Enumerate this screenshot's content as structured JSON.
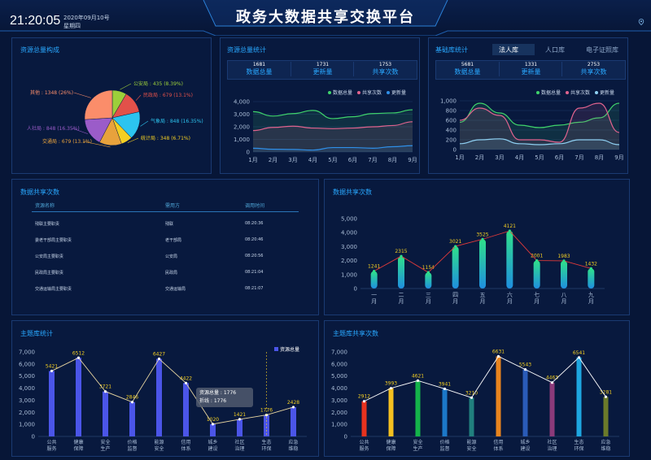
{
  "header": {
    "title": "政务大数据共享交换平台",
    "time": "21:20:05",
    "date": "2020年09月10号",
    "weekday": "星期四",
    "location_icon": "location-pin-icon"
  },
  "colors": {
    "background": "#071637",
    "accent": "#29a8ff",
    "panel_border": "#1a3a72"
  },
  "resource_composition": {
    "title": "资源总量构成",
    "chart_data": {
      "type": "pie",
      "slices": [
        {
          "name": "公安局",
          "value": 435,
          "label": "公安局 : 435 (8.39%)",
          "color": "#9ccf3a"
        },
        {
          "name": "民政局",
          "value": 679,
          "label": "民政局 : 679 (13.1%)",
          "color": "#e2514a"
        },
        {
          "name": "气象局",
          "value": 848,
          "label": "气象局 : 848 (16.35%)",
          "color": "#2cc4ef"
        },
        {
          "name": "统计局",
          "value": 348,
          "label": "统计局 : 348 (6.71%)",
          "color": "#f4cf22"
        },
        {
          "name": "交通局",
          "value": 679,
          "label": "交通局 : 679 (13.1%)",
          "color": "#e8a23c"
        },
        {
          "name": "人社局",
          "value": 848,
          "label": "人社局 : 848 (16.35%)",
          "color": "#9b5cc9"
        },
        {
          "name": "其他",
          "value": 1348,
          "label": "其他 : 1348 (26%)",
          "color": "#fb8d6a"
        }
      ]
    }
  },
  "resource_stats": {
    "title": "资源总量统计",
    "stats": [
      {
        "value": "1681",
        "label": "数据总量"
      },
      {
        "value": "1731",
        "label": "更新量"
      },
      {
        "value": "1753",
        "label": "共享次数"
      }
    ],
    "chart_data": {
      "type": "line",
      "categories": [
        "1月",
        "2月",
        "3月",
        "4月",
        "5月",
        "6月",
        "7月",
        "8月",
        "9月"
      ],
      "ylim": [
        0,
        4000
      ],
      "yticks": [
        "4,000",
        "3,000",
        "2,000",
        "1,000",
        "0"
      ],
      "series": [
        {
          "name": "数据总量",
          "color": "#3fd36b",
          "values": [
            3200,
            2850,
            3050,
            3300,
            2650,
            2800,
            3050,
            3100,
            3350
          ]
        },
        {
          "name": "共享次数",
          "color": "#e0638e",
          "values": [
            1700,
            1950,
            2050,
            1900,
            1850,
            1900,
            2000,
            2100,
            2400
          ]
        },
        {
          "name": "更新量",
          "color": "#2f8fe8",
          "values": [
            300,
            220,
            200,
            150,
            350,
            350,
            300,
            420,
            500
          ]
        }
      ]
    }
  },
  "base_library": {
    "title": "基础库统计",
    "tabs": [
      "法人库",
      "人口库",
      "电子证照库"
    ],
    "active_tab": 0,
    "stats": [
      {
        "value": "5681",
        "label": "数据总量"
      },
      {
        "value": "1331",
        "label": "更新量"
      },
      {
        "value": "2753",
        "label": "共享次数"
      }
    ],
    "chart_data": {
      "type": "line",
      "categories": [
        "1月",
        "2月",
        "3月",
        "4月",
        "5月",
        "6月",
        "7月",
        "8月",
        "9月"
      ],
      "ylim": [
        0,
        1000
      ],
      "yticks": [
        "1,000",
        "800",
        "600",
        "400",
        "200",
        "0"
      ],
      "series": [
        {
          "name": "数据总量",
          "color": "#3fd36b",
          "values": [
            560,
            950,
            750,
            500,
            450,
            500,
            560,
            650,
            950
          ]
        },
        {
          "name": "共享次数",
          "color": "#e0638e",
          "values": [
            600,
            850,
            700,
            200,
            200,
            150,
            850,
            950,
            350
          ]
        },
        {
          "name": "更新量",
          "color": "#8fd0f2",
          "values": [
            120,
            200,
            220,
            120,
            100,
            120,
            200,
            200,
            100
          ]
        }
      ]
    }
  },
  "share_table": {
    "title": "数据共享次数",
    "columns": [
      "资源名称",
      "需用方",
      "调用时间"
    ],
    "rows": [
      [
        "残联主要职责",
        "残联",
        "08:20:36"
      ],
      [
        "委老干部局主要职责",
        "老干部局",
        "08:20:46"
      ],
      [
        "公安局主要职责",
        "公安局",
        "08:20:56"
      ],
      [
        "民政局主要职责",
        "民政局",
        "08:21:04"
      ],
      [
        "交通运输局主要职责",
        "交通运输局",
        "08:21:07"
      ]
    ]
  },
  "share_count": {
    "title": "数据共享次数",
    "chart_data": {
      "type": "bar",
      "categories": [
        "一月",
        "二月",
        "三月",
        "四月",
        "五月",
        "六月",
        "七月",
        "八月",
        "九月"
      ],
      "values": [
        1241,
        2315,
        1154,
        3021,
        3525,
        4121,
        2001,
        1983,
        1432
      ],
      "ylim": [
        0,
        5000
      ],
      "yticks": [
        "5,000",
        "4,000",
        "3,000",
        "2,000",
        "1,000",
        "0"
      ]
    }
  },
  "theme_stats": {
    "title": "主题库统计",
    "legend": "资源总量",
    "tooltip": {
      "line1": "资源总量 : 1776",
      "line2": "折线 : 1776"
    },
    "chart_data": {
      "type": "bar",
      "categories": [
        "公共服务",
        "健康保障",
        "安全生产",
        "价格监督",
        "能源安全",
        "信用体系",
        "城乡建设",
        "社区治理",
        "生态环保",
        "应急维稳"
      ],
      "category_lines": [
        [
          "公共",
          "服务"
        ],
        [
          "健康",
          "保障"
        ],
        [
          "安全",
          "生产"
        ],
        [
          "价格",
          "监督"
        ],
        [
          "能源",
          "安全"
        ],
        [
          "信用",
          "体系"
        ],
        [
          "城乡",
          "建设"
        ],
        [
          "社区",
          "治理"
        ],
        [
          "生态",
          "环保"
        ],
        [
          "应急",
          "维稳"
        ]
      ],
      "values": [
        5421,
        6512,
        3721,
        2846,
        6427,
        4422,
        1020,
        1421,
        1776,
        2428
      ],
      "ylim": [
        0,
        7000
      ],
      "yticks": [
        "7,000",
        "6,000",
        "5,000",
        "4,000",
        "3,000",
        "2,000",
        "1,000",
        "0"
      ]
    }
  },
  "theme_share": {
    "title": "主题库共享次数",
    "chart_data": {
      "type": "bar",
      "categories": [
        "公共服务",
        "健康保障",
        "安全生产",
        "价格监督",
        "能源安全",
        "信用体系",
        "城乡建设",
        "社区治理",
        "生态环保",
        "应急维稳"
      ],
      "category_lines": [
        [
          "公共",
          "服务"
        ],
        [
          "健康",
          "保障"
        ],
        [
          "安全",
          "生产"
        ],
        [
          "价格",
          "监督"
        ],
        [
          "能源",
          "安全"
        ],
        [
          "信用",
          "体系"
        ],
        [
          "城乡",
          "建设"
        ],
        [
          "社区",
          "治理"
        ],
        [
          "生态",
          "环保"
        ],
        [
          "应急",
          "维稳"
        ]
      ],
      "values": [
        2912,
        3993,
        4621,
        3941,
        3210,
        6631,
        5543,
        4463,
        6541,
        3281
      ],
      "colors": [
        "#e8321e",
        "#f4c020",
        "#14b34a",
        "#1c78c8",
        "#21807e",
        "#e8841e",
        "#2a5bb8",
        "#8b3a7a",
        "#1ea6e0",
        "#6b7a2a"
      ],
      "ylim": [
        0,
        7000
      ],
      "yticks": [
        "7,000",
        "6,000",
        "5,000",
        "4,000",
        "3,000",
        "2,000",
        "1,000",
        "0"
      ]
    }
  }
}
